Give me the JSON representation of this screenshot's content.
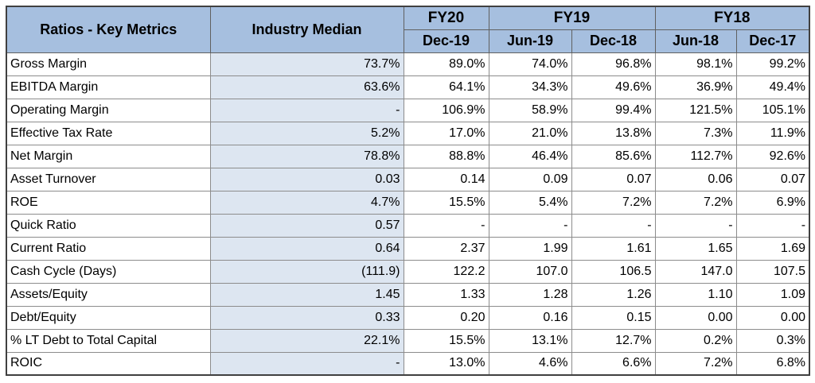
{
  "header": {
    "metric_label": "Ratios - Key Metrics",
    "median_label": "Industry Median",
    "fiscal_years": [
      {
        "label": "FY20",
        "span": 1
      },
      {
        "label": "FY19",
        "span": 2
      },
      {
        "label": "FY18",
        "span": 2
      }
    ],
    "periods": [
      "Dec-19",
      "Jun-19",
      "Dec-18",
      "Jun-18",
      "Dec-17"
    ]
  },
  "rows": [
    {
      "metric": "Gross Margin",
      "median": "73.7%",
      "values": [
        "89.0%",
        "74.0%",
        "96.8%",
        "98.1%",
        "99.2%"
      ]
    },
    {
      "metric": "EBITDA Margin",
      "median": "63.6%",
      "values": [
        "64.1%",
        "34.3%",
        "49.6%",
        "36.9%",
        "49.4%"
      ]
    },
    {
      "metric": "Operating Margin",
      "median": "-",
      "values": [
        "106.9%",
        "58.9%",
        "99.4%",
        "121.5%",
        "105.1%"
      ]
    },
    {
      "metric": "Effective Tax Rate",
      "median": "5.2%",
      "values": [
        "17.0%",
        "21.0%",
        "13.8%",
        "7.3%",
        "11.9%"
      ]
    },
    {
      "metric": "Net Margin",
      "median": "78.8%",
      "values": [
        "88.8%",
        "46.4%",
        "85.6%",
        "112.7%",
        "92.6%"
      ]
    },
    {
      "metric": "Asset Turnover",
      "median": "0.03",
      "values": [
        "0.14",
        "0.09",
        "0.07",
        "0.06",
        "0.07"
      ]
    },
    {
      "metric": "ROE",
      "median": "4.7%",
      "values": [
        "15.5%",
        "5.4%",
        "7.2%",
        "7.2%",
        "6.9%"
      ]
    },
    {
      "metric": "Quick Ratio",
      "median": "0.57",
      "values": [
        "-",
        "-",
        "-",
        "-",
        "-"
      ]
    },
    {
      "metric": "Current Ratio",
      "median": "0.64",
      "values": [
        "2.37",
        "1.99",
        "1.61",
        "1.65",
        "1.69"
      ]
    },
    {
      "metric": "Cash Cycle (Days)",
      "median": "(111.9)",
      "values": [
        "122.2",
        "107.0",
        "106.5",
        "147.0",
        "107.5"
      ]
    },
    {
      "metric": "Assets/Equity",
      "median": "1.45",
      "values": [
        "1.33",
        "1.28",
        "1.26",
        "1.10",
        "1.09"
      ]
    },
    {
      "metric": "Debt/Equity",
      "median": "0.33",
      "values": [
        "0.20",
        "0.16",
        "0.15",
        "0.00",
        "0.00"
      ]
    },
    {
      "metric": "% LT Debt to Total Capital",
      "median": "22.1%",
      "values": [
        "15.5%",
        "13.1%",
        "12.7%",
        "0.2%",
        "0.3%"
      ]
    },
    {
      "metric": "ROIC",
      "median": "-",
      "values": [
        "13.0%",
        "4.6%",
        "6.6%",
        "7.2%",
        "6.8%"
      ]
    }
  ]
}
